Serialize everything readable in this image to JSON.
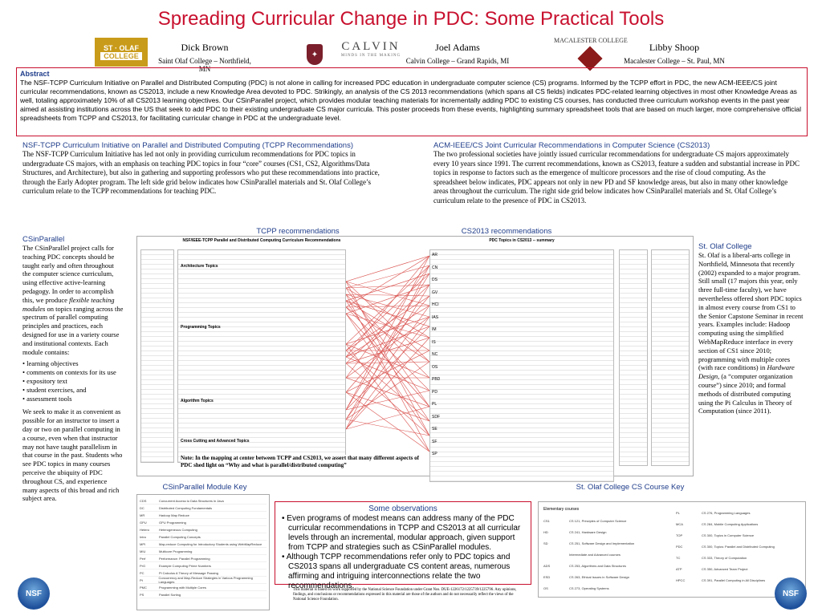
{
  "title": "Spreading Curricular Change in PDC: Some Practical Tools",
  "authors": [
    {
      "name": "Dick Brown",
      "affil": "Saint Olaf College – Northfield, MN"
    },
    {
      "name": "Joel Adams",
      "affil": "Calvin College – Grand Rapids, MI"
    },
    {
      "name": "Libby Shoop",
      "affil": "Macalester College – St. Paul, MN"
    }
  ],
  "logos": {
    "stolaf_line1": "ST · OLAF",
    "stolaf_line2": "COLLEGE",
    "calvin": "CALVIN",
    "calvin_tag": "MINDS IN THE MAKING",
    "macalester": "MACALESTER COLLEGE"
  },
  "abstract": {
    "heading": "Abstract",
    "text": "The NSF-TCPP Curriculum Initiative on Parallel and Distributed Computing (PDC) is not alone in calling for increased PDC education in undergraduate computer science (CS) programs. Informed by the TCPP effort in PDC, the new ACM-IEEE/CS joint curricular recommendations, known as CS2013, include a new Knowledge Area devoted to PDC. Strikingly, an analysis of the CS 2013 recommendations (which spans all CS fields) indicates PDC-related learning objectives in most other Knowledge Areas as well, totaling approximately 10% of all CS2013 learning objectives. Our CSinParallel project, which provides modular teaching materials for incrementally adding PDC to existing CS courses, has conducted three curriculum workshop events in the past year aimed at assisting institutions across the US that seek to add PDC to their existing undergraduate CS major curricula. This poster proceeds from these events, highlighting summary spreadsheet tools that are based on much larger, more comprehensive official spreadsheets from TCPP and CS2013, for facilitating curricular change in PDC at the undergraduate level."
  },
  "tcpp": {
    "heading": "NSF-TCPP Curriculum Initiative on Parallel and Distributed Computing (TCPP Recommendations)",
    "text": "The NSF-TCPP Curriculum Initiative has led not only in providing curriculum recommendations for PDC topics in undergraduate CS majors, with an emphasis on teaching PDC topics in four “core” courses (CS1, CS2, Algorithms/Data Structures, and Architecture), but also in gathering and supporting professors who put these recommendations into practice, through the Early Adopter program. The left side grid below indicates how CSinParallel materials and St. Olaf College’s curriculum relate to the TCPP recommendations for teaching PDC."
  },
  "acm": {
    "heading": "ACM-IEEE/CS Joint Curricular Recommendations in Computer Science (CS2013)",
    "text": "The two professional societies have jointly issued curricular recommendations for undergraduate CS majors approximately every 10 years since 1991.  The current recommendations, known as CS2013, feature a sudden and substantial increase in PDC topics in response to factors such as the emergence of multicore processors and the rise of cloud computing.  As the spreadsheet below indicates, PDC appears not only in new PD and SF knowledge areas, but also in many other knowledge areas throughout the curriculum. The right side grid below indicates how CSinParallel materials and St. Olaf  College’s curriculum relate to the presence of PDC in CS2013."
  },
  "csinparallel": {
    "heading": "CSinParallel",
    "text1": "The CSinParallel project calls for teaching PDC concepts should be taught early and often throughout the computer science curriculum, using effective active-learning pedagogy.  In order to accomplish this, we produce ",
    "text_em": "flexible teaching modules",
    "text2": " on topics ranging across the spectrum of parallel computing principles and practices, each designed for use in a variety course and institutional contexts.  Each module contains:",
    "bullets": [
      "learning objectives",
      "comments on contexts for its use",
      "expository text",
      "student exercises, and",
      "assessment tools"
    ],
    "text3": "We seek to make it as convenient as possible for an instructor to insert a day or two on parallel computing in a course, even when that instructor may not have taught parallelism in that course in the past.  Students who see PDC topics in many courses perceive the ubiquity of PDC throughout CS, and experience many aspects of this broad and rich subject area."
  },
  "stolaf": {
    "heading": "St. Olaf College",
    "text1": "St. Olaf is a liberal-arts college in Northfield, Minnesota that recently (2002) expanded to a major program. Still small (17 majors this year, only three full-time faculty), we have nevertheless offered short PDC topics in almost every course from CS1 to the Senior Capstone Seminar in recent years. Examples include:  Hadoop computing using the simplified WebMapReduce interface in every section of CS1 since 2010; programming with multiple cores (with race conditions) in ",
    "text_em": "Hardware Design",
    "text2": ", (a “computer organization course”) since 2010;  and formal methods of distributed computing using the Pi Calculus in Theory of Computation (since 2011)."
  },
  "panels": {
    "tcpp_label": "TCPP recommendations",
    "cs2013_label": "CS2013 recommendations",
    "tcpp_sheet_title": "NSF/IEEE-TCPP Parallel and Distributed Computing Curriculum Recommendations",
    "cs2013_sheet_title": "PDC Topics in CS2013 -- summary",
    "note": "Note: In the mapping at center between TCPP and CS2013, we assert that many different aspects of PDC shed light on “Why and what is parallel/distributed computing”",
    "tcpp_sections": [
      "Architecture Topics",
      "Programming Topics",
      "Algorithm Topics",
      "Cross Cutting and Advanced Topics"
    ],
    "cs2013_ka": [
      "AR",
      "CN",
      "DS",
      "GV",
      "HCI",
      "IAS",
      "IM",
      "IS",
      "NC",
      "OS",
      "PBD",
      "PD",
      "PL",
      "SDF",
      "SE",
      "SF",
      "SP"
    ]
  },
  "module_key": {
    "heading": "CSinParallel Module Key",
    "rows": [
      [
        "CDS",
        "Concurrent Access to Data Structures in Java"
      ],
      [
        "DC",
        "Distributed Computing Fundamentals"
      ],
      [
        "MR",
        "Hadoop   Map Reduce"
      ],
      [
        "GPU",
        "GPU Programming"
      ],
      [
        "Hetero",
        "Heterogeneous Computing"
      ],
      [
        "Intro",
        "Parallel Computing Concepts"
      ],
      [
        "MPI",
        "Map-reduce Computing for Introductory Students using WebMapReduce"
      ],
      [
        "MIU",
        "Multicore Programming"
      ],
      [
        "Perf",
        "Performance: Parallel Programming"
      ],
      [
        "PrG",
        "Example   Computing Prime Numbers"
      ],
      [
        "PC",
        "Pi Calculus   A Theory of Message Passing"
      ],
      [
        "Pt",
        "Concurrency and Map-Reduce Strategies in Various Programming Languages"
      ],
      [
        "PMC",
        "Programming with Multiple Cores"
      ],
      [
        "PS",
        "Parallel Sorting"
      ]
    ]
  },
  "course_key": {
    "heading": "St. Olaf College CS Course Key",
    "left_header": "Elementary courses",
    "left": [
      [
        "CS1",
        "CS 121, Principles of Computer Science"
      ],
      [
        "HD",
        "CS 241, Hardware Design"
      ],
      [
        "SD",
        "CS 251, Software Design and Implementation"
      ],
      [
        "",
        "Intermediate and Advanced courses"
      ],
      [
        "ADS",
        "CS 253, Algorithms and Data Structures"
      ],
      [
        "ESD",
        "CS 263, Ethical Issues in Software Design"
      ],
      [
        "OS",
        "CS 273, Operating Systems"
      ]
    ],
    "right": [
      [
        "PL",
        "CS 276, Programming Languages"
      ],
      [
        "MCA",
        "CS 284, Mobile Computing Applications"
      ],
      [
        "TOP",
        "CS 300, Topics in Computer Science"
      ],
      [
        "PDC",
        "CS 300, Topics: Parallel and Distributed Computing"
      ],
      [
        "TC",
        "CS 333, Theory of Computation"
      ],
      [
        "ATP",
        "CS 350, Advanced Team Project"
      ],
      [
        "HPCC",
        "CS 391, Parallel Computing in All Disciplines"
      ]
    ]
  },
  "observations": {
    "heading": "Some observations",
    "items": [
      "Even programs of modest means can address many of the PDC curricular recommendations in TCPP and CS2013 at all curricular levels through an incremental, modular approach, given support from TCPP and strategies such as CSinParallel modules.",
      "Although TCPP recommendations refer only to PDC topics and CS2013 spans all undergraduate CS content areas, numerous affirming and intriguing interconnections relate the two recommendations."
    ]
  },
  "footer": "This material is based on work supported by the National Science Foundation under Grant Nos. DUE-1226172/1225739/1225796. Any opinions, findings, and conclusions or recommendations expressed in this material are those of the authors and do not necessarily reflect the views of the National Science Foundation.",
  "nsf": "NSF"
}
